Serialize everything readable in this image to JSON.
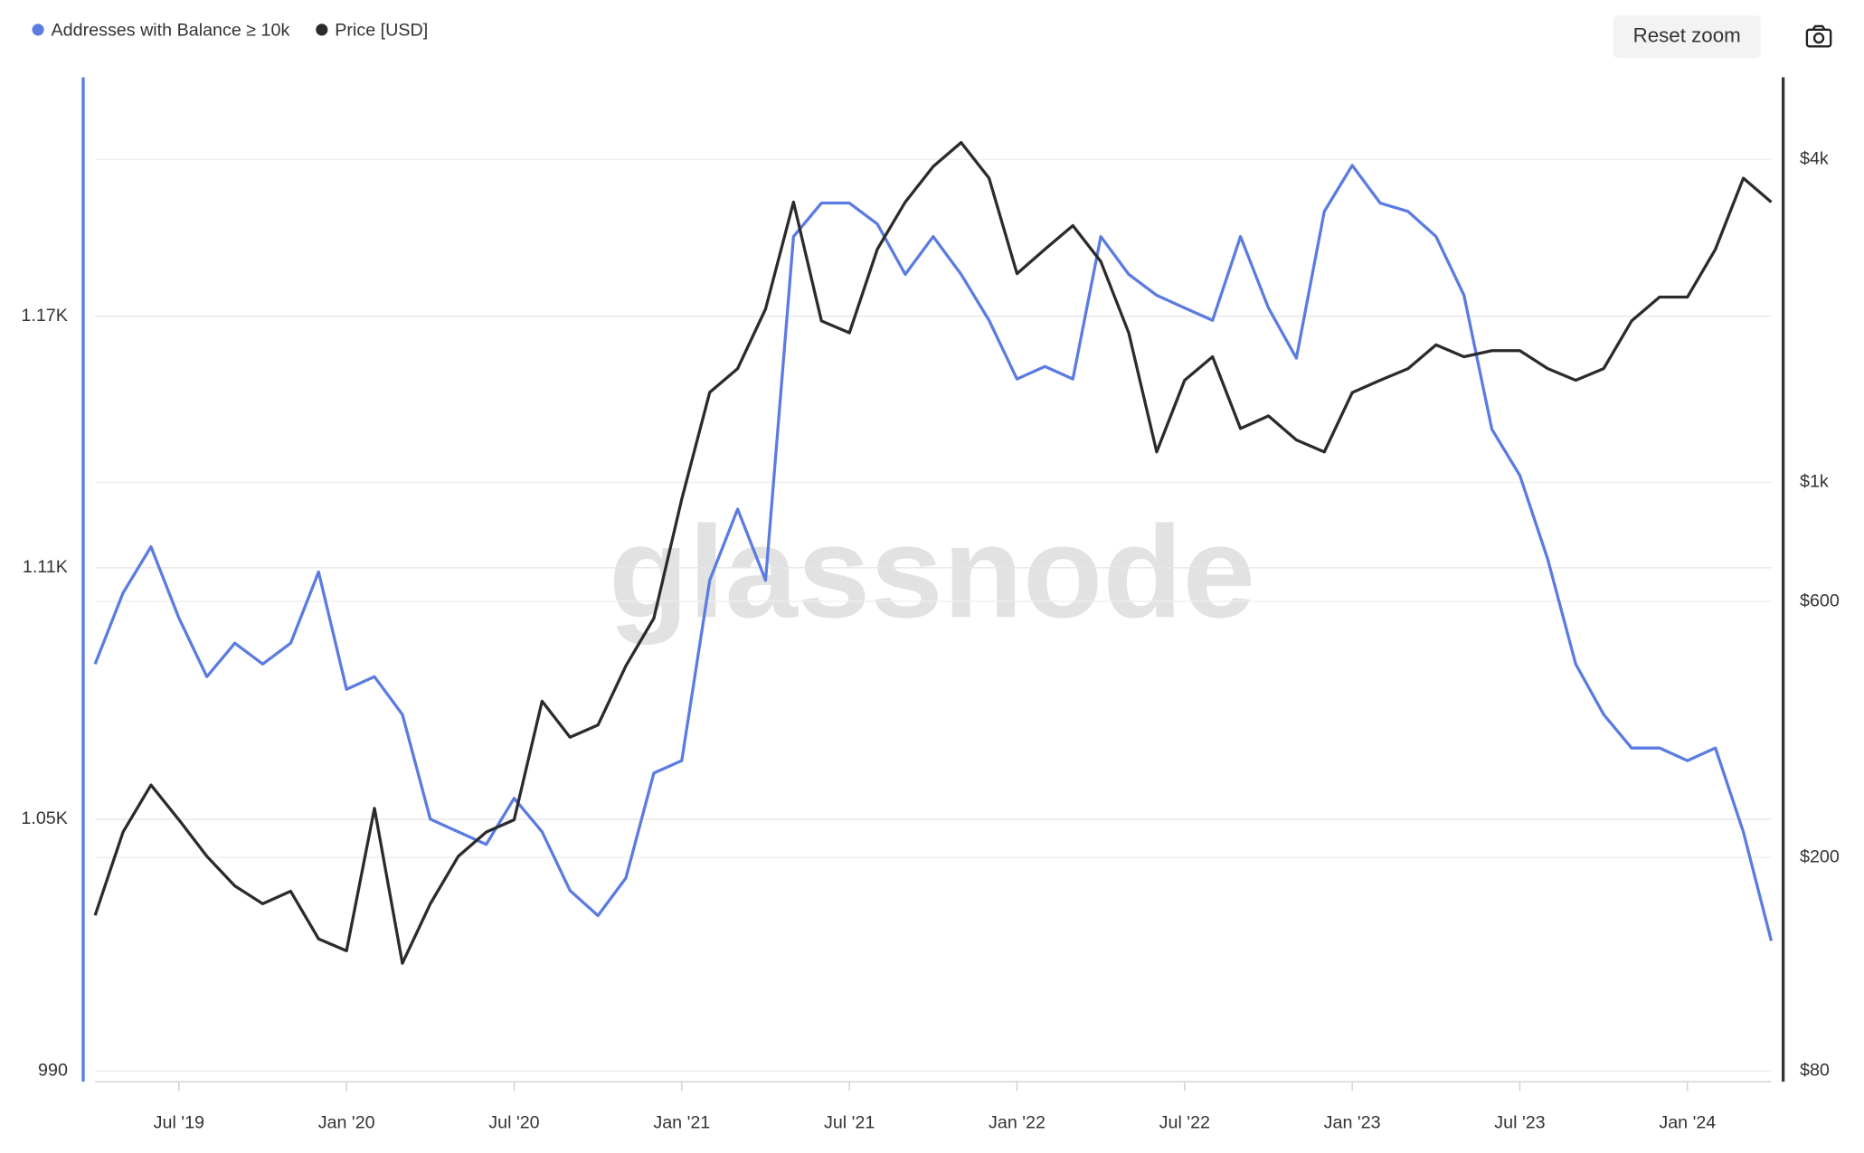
{
  "chart_data": {
    "type": "line",
    "watermark": "glassnode",
    "x": [
      "2019-04",
      "2019-05",
      "2019-06",
      "2019-07",
      "2019-08",
      "2019-09",
      "2019-10",
      "2019-11",
      "2019-12",
      "2020-01",
      "2020-02",
      "2020-03",
      "2020-04",
      "2020-05",
      "2020-06",
      "2020-07",
      "2020-08",
      "2020-09",
      "2020-10",
      "2020-11",
      "2020-12",
      "2021-01",
      "2021-02",
      "2021-03",
      "2021-04",
      "2021-05",
      "2021-06",
      "2021-07",
      "2021-08",
      "2021-09",
      "2021-10",
      "2021-11",
      "2021-12",
      "2022-01",
      "2022-02",
      "2022-03",
      "2022-04",
      "2022-05",
      "2022-06",
      "2022-07",
      "2022-08",
      "2022-09",
      "2022-10",
      "2022-11",
      "2022-12",
      "2023-01",
      "2023-02",
      "2023-03",
      "2023-04",
      "2023-05",
      "2023-06",
      "2023-07",
      "2023-08",
      "2023-09",
      "2023-10",
      "2023-11",
      "2023-12",
      "2024-01",
      "2024-02",
      "2024-03",
      "2024-04"
    ],
    "series": [
      {
        "name": "Addresses with Balance ≥ 10k",
        "color": "#5b7be0",
        "axis": "y",
        "values": [
          1087,
          1104,
          1115,
          1098,
          1084,
          1092,
          1087,
          1092,
          1109,
          1081,
          1084,
          1075,
          1050,
          1047,
          1044,
          1055,
          1047,
          1033,
          1027,
          1036,
          1061,
          1064,
          1107,
          1124,
          1107,
          1189,
          1197,
          1197,
          1192,
          1180,
          1189,
          1180,
          1169,
          1155,
          1158,
          1155,
          1189,
          1180,
          1175,
          1172,
          1169,
          1189,
          1172,
          1160,
          1195,
          1206,
          1197,
          1195,
          1189,
          1175,
          1143,
          1132,
          1112,
          1087,
          1075,
          1067,
          1067,
          1064,
          1067,
          1047,
          1021
        ]
      },
      {
        "name": "Price [USD]",
        "color": "#2b2b2b",
        "axis": "y2",
        "values": [
          156,
          223,
          273,
          235,
          201,
          177,
          164,
          173,
          141,
          134,
          247,
          127,
          164,
          201,
          223,
          235,
          391,
          335,
          353,
          455,
          558,
          931,
          1472,
          1630,
          2105,
          3330,
          2000,
          1900,
          2720,
          3330,
          3880,
          4300,
          3690,
          2450,
          2720,
          3010,
          2580,
          1900,
          1140,
          1550,
          1715,
          1260,
          1330,
          1200,
          1140,
          1470,
          1550,
          1630,
          1805,
          1715,
          1760,
          1760,
          1630,
          1550,
          1630,
          2000,
          2215,
          2215,
          2720,
          3690,
          3330
        ]
      }
    ],
    "xlim": [
      "2019-04",
      "2024-04"
    ],
    "xticks": [
      {
        "value": "2019-07",
        "label": "Jul '19"
      },
      {
        "value": "2020-01",
        "label": "Jan '20"
      },
      {
        "value": "2020-07",
        "label": "Jul '20"
      },
      {
        "value": "2021-01",
        "label": "Jan '21"
      },
      {
        "value": "2021-07",
        "label": "Jul '21"
      },
      {
        "value": "2022-01",
        "label": "Jan '22"
      },
      {
        "value": "2022-07",
        "label": "Jul '22"
      },
      {
        "value": "2023-01",
        "label": "Jan '23"
      },
      {
        "value": "2023-07",
        "label": "Jul '23"
      },
      {
        "value": "2024-01",
        "label": "Jan '24"
      }
    ],
    "ylim": [
      987.4,
      1227
    ],
    "yticks": [
      990,
      {
        "value": 1050,
        "label": "1.05K"
      },
      {
        "value": 1110,
        "label": "1.11K"
      },
      {
        "value": 1170,
        "label": "1.17K"
      }
    ],
    "y2lim": [
      76.4,
      5690
    ],
    "y2_log": true,
    "y2ticks": [
      {
        "value": 80,
        "label": "$80"
      },
      {
        "value": 200,
        "label": "$200"
      },
      {
        "value": 600,
        "label": "$600"
      },
      {
        "value": 1000,
        "label": "$1k"
      },
      {
        "value": 4000,
        "label": "$4k"
      }
    ],
    "grid": true
  },
  "controls": {
    "reset_zoom": "Reset zoom"
  }
}
